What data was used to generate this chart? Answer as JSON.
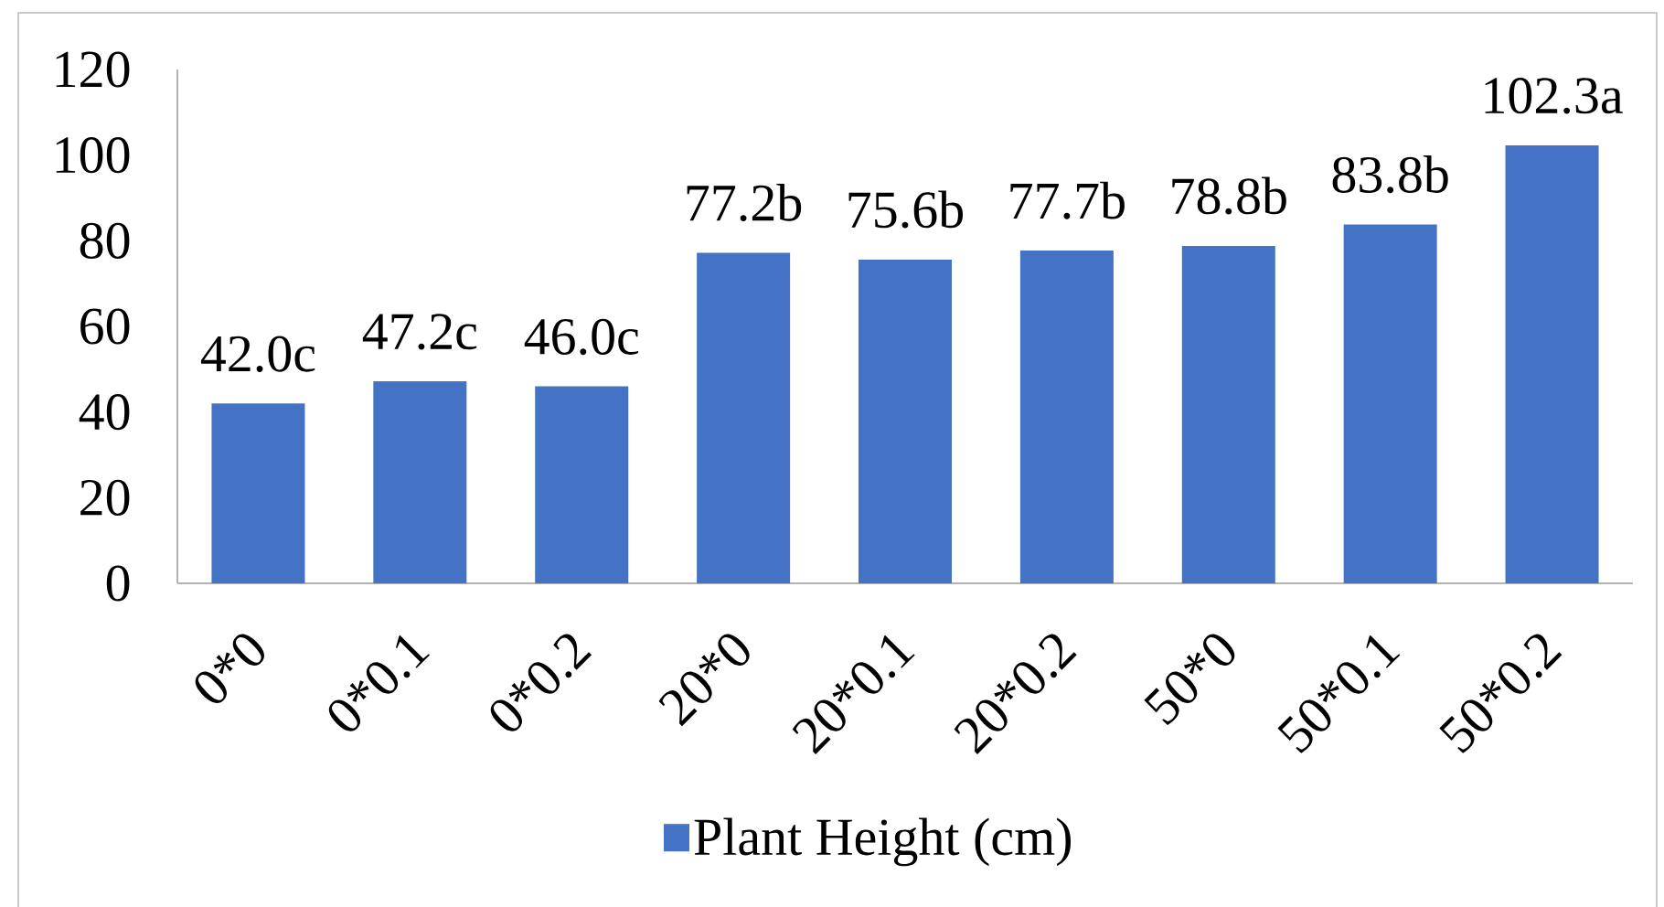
{
  "chart_data": {
    "type": "bar",
    "categories": [
      "0*0",
      "0*0.1",
      "0*0.2",
      "20*0",
      "20*0.1",
      "20*0.2",
      "50*0",
      "50*0.1",
      "50*0.2"
    ],
    "series": [
      {
        "name": "Plant Height (cm)",
        "color": "#4472c4",
        "values": [
          42.0,
          47.2,
          46.0,
          77.2,
          75.6,
          77.7,
          78.8,
          83.8,
          102.3
        ],
        "value_labels": [
          "42.0c",
          "47.2c",
          "46.0c",
          "77.2b",
          "75.6b",
          "77.7b",
          "78.8b",
          "83.8b",
          "102.3a"
        ]
      }
    ],
    "ylim": [
      0,
      120
    ],
    "yticks": [
      0,
      20,
      40,
      60,
      80,
      100,
      120
    ],
    "legend": "bottom"
  }
}
